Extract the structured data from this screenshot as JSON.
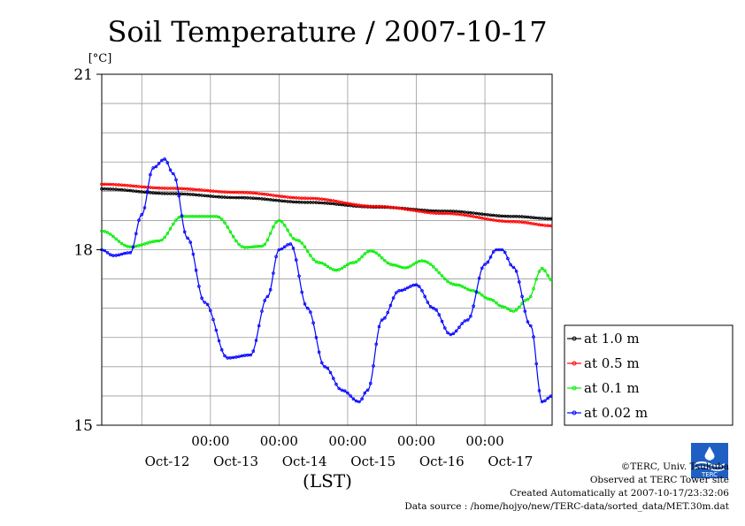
{
  "chart_data": {
    "type": "line",
    "title": "Soil Temperature / 2007-10-17",
    "y_unit": "[°C]",
    "xlabel": "(LST)",
    "ylabel": "",
    "ylim": [
      15,
      21
    ],
    "yticks": [
      15,
      18,
      21
    ],
    "grid": true,
    "legend_position": "right",
    "xlim": [
      "2007-10-11 10:00",
      "2007-10-17 23:30"
    ],
    "time_ticks": [
      "00:00",
      "00:00",
      "00:00",
      "00:00",
      "00:00"
    ],
    "day_labels": [
      "Oct-12",
      "Oct-13",
      "Oct-14",
      "Oct-15",
      "Oct-16",
      "Oct-17"
    ],
    "series": [
      {
        "name": "at 1.0 m",
        "color": "#000000",
        "points": [
          [
            "2007-10-11 10:00",
            19.04
          ],
          [
            "2007-10-12 10:00",
            18.96
          ],
          [
            "2007-10-13 10:00",
            18.89
          ],
          [
            "2007-10-14 10:00",
            18.81
          ],
          [
            "2007-10-15 10:00",
            18.73
          ],
          [
            "2007-10-16 10:00",
            18.66
          ],
          [
            "2007-10-17 10:00",
            18.57
          ],
          [
            "2007-10-17 23:30",
            18.53
          ]
        ]
      },
      {
        "name": "at 0.5 m",
        "color": "#ff0000",
        "points": [
          [
            "2007-10-11 10:00",
            19.12
          ],
          [
            "2007-10-12 10:00",
            19.05
          ],
          [
            "2007-10-13 10:00",
            18.98
          ],
          [
            "2007-10-14 10:00",
            18.88
          ],
          [
            "2007-10-15 10:00",
            18.74
          ],
          [
            "2007-10-16 10:00",
            18.62
          ],
          [
            "2007-10-17 10:00",
            18.48
          ],
          [
            "2007-10-17 23:30",
            18.41
          ]
        ]
      },
      {
        "name": "at 0.1 m",
        "color": "#00ee00",
        "points": [
          [
            "2007-10-11 10:00",
            18.32
          ],
          [
            "2007-10-11 20:00",
            18.05
          ],
          [
            "2007-10-12 06:00",
            18.15
          ],
          [
            "2007-10-12 14:00",
            18.57
          ],
          [
            "2007-10-13 02:00",
            18.57
          ],
          [
            "2007-10-13 12:00",
            18.04
          ],
          [
            "2007-10-13 18:00",
            18.06
          ],
          [
            "2007-10-14 00:00",
            18.5
          ],
          [
            "2007-10-14 06:00",
            18.17
          ],
          [
            "2007-10-14 14:00",
            17.78
          ],
          [
            "2007-10-14 20:00",
            17.65
          ],
          [
            "2007-10-15 02:00",
            17.78
          ],
          [
            "2007-10-15 08:00",
            17.98
          ],
          [
            "2007-10-15 16:00",
            17.74
          ],
          [
            "2007-10-15 20:00",
            17.69
          ],
          [
            "2007-10-16 02:00",
            17.81
          ],
          [
            "2007-10-16 14:00",
            17.4
          ],
          [
            "2007-10-16 20:00",
            17.3
          ],
          [
            "2007-10-17 02:00",
            17.15
          ],
          [
            "2007-10-17 06:00",
            17.03
          ],
          [
            "2007-10-17 10:00",
            16.95
          ],
          [
            "2007-10-17 15:00",
            17.15
          ],
          [
            "2007-10-17 20:00",
            17.68
          ],
          [
            "2007-10-17 23:30",
            17.48
          ]
        ]
      },
      {
        "name": "at 0.02 m",
        "color": "#0000ff",
        "points": [
          [
            "2007-10-11 10:00",
            18.0
          ],
          [
            "2007-10-11 14:00",
            17.9
          ],
          [
            "2007-10-11 20:00",
            17.95
          ],
          [
            "2007-10-12 00:00",
            18.6
          ],
          [
            "2007-10-12 04:00",
            19.4
          ],
          [
            "2007-10-12 08:00",
            19.55
          ],
          [
            "2007-10-12 11:00",
            19.3
          ],
          [
            "2007-10-12 16:00",
            18.2
          ],
          [
            "2007-10-12 22:00",
            17.1
          ],
          [
            "2007-10-13 06:00",
            16.15
          ],
          [
            "2007-10-13 14:00",
            16.2
          ],
          [
            "2007-10-13 20:00",
            17.2
          ],
          [
            "2007-10-14 00:00",
            18.0
          ],
          [
            "2007-10-14 04:00",
            18.1
          ],
          [
            "2007-10-14 10:00",
            17.0
          ],
          [
            "2007-10-14 16:00",
            16.0
          ],
          [
            "2007-10-14 22:00",
            15.6
          ],
          [
            "2007-10-15 04:00",
            15.4
          ],
          [
            "2007-10-15 07:00",
            15.6
          ],
          [
            "2007-10-15 12:00",
            16.8
          ],
          [
            "2007-10-15 18:00",
            17.3
          ],
          [
            "2007-10-16 00:00",
            17.4
          ],
          [
            "2007-10-16 06:00",
            17.0
          ],
          [
            "2007-10-16 12:00",
            16.55
          ],
          [
            "2007-10-16 18:00",
            16.8
          ],
          [
            "2007-10-17 00:00",
            17.75
          ],
          [
            "2007-10-17 04:00",
            18.0
          ],
          [
            "2007-10-17 06:00",
            18.0
          ],
          [
            "2007-10-17 10:00",
            17.7
          ],
          [
            "2007-10-17 16:00",
            16.7
          ],
          [
            "2007-10-17 20:00",
            15.4
          ],
          [
            "2007-10-17 23:30",
            15.5
          ]
        ]
      }
    ]
  },
  "credits": {
    "copyright": "©TERC, Univ. Tsukuba",
    "observed": "Observed at TERC Tower site",
    "created": "Created Automatically at 2007-10-17/23:32:06",
    "source": "Data source : /home/hojyo/new/TERC-data/sorted_data/MET.30m.dat",
    "logo_text": "TERC"
  }
}
